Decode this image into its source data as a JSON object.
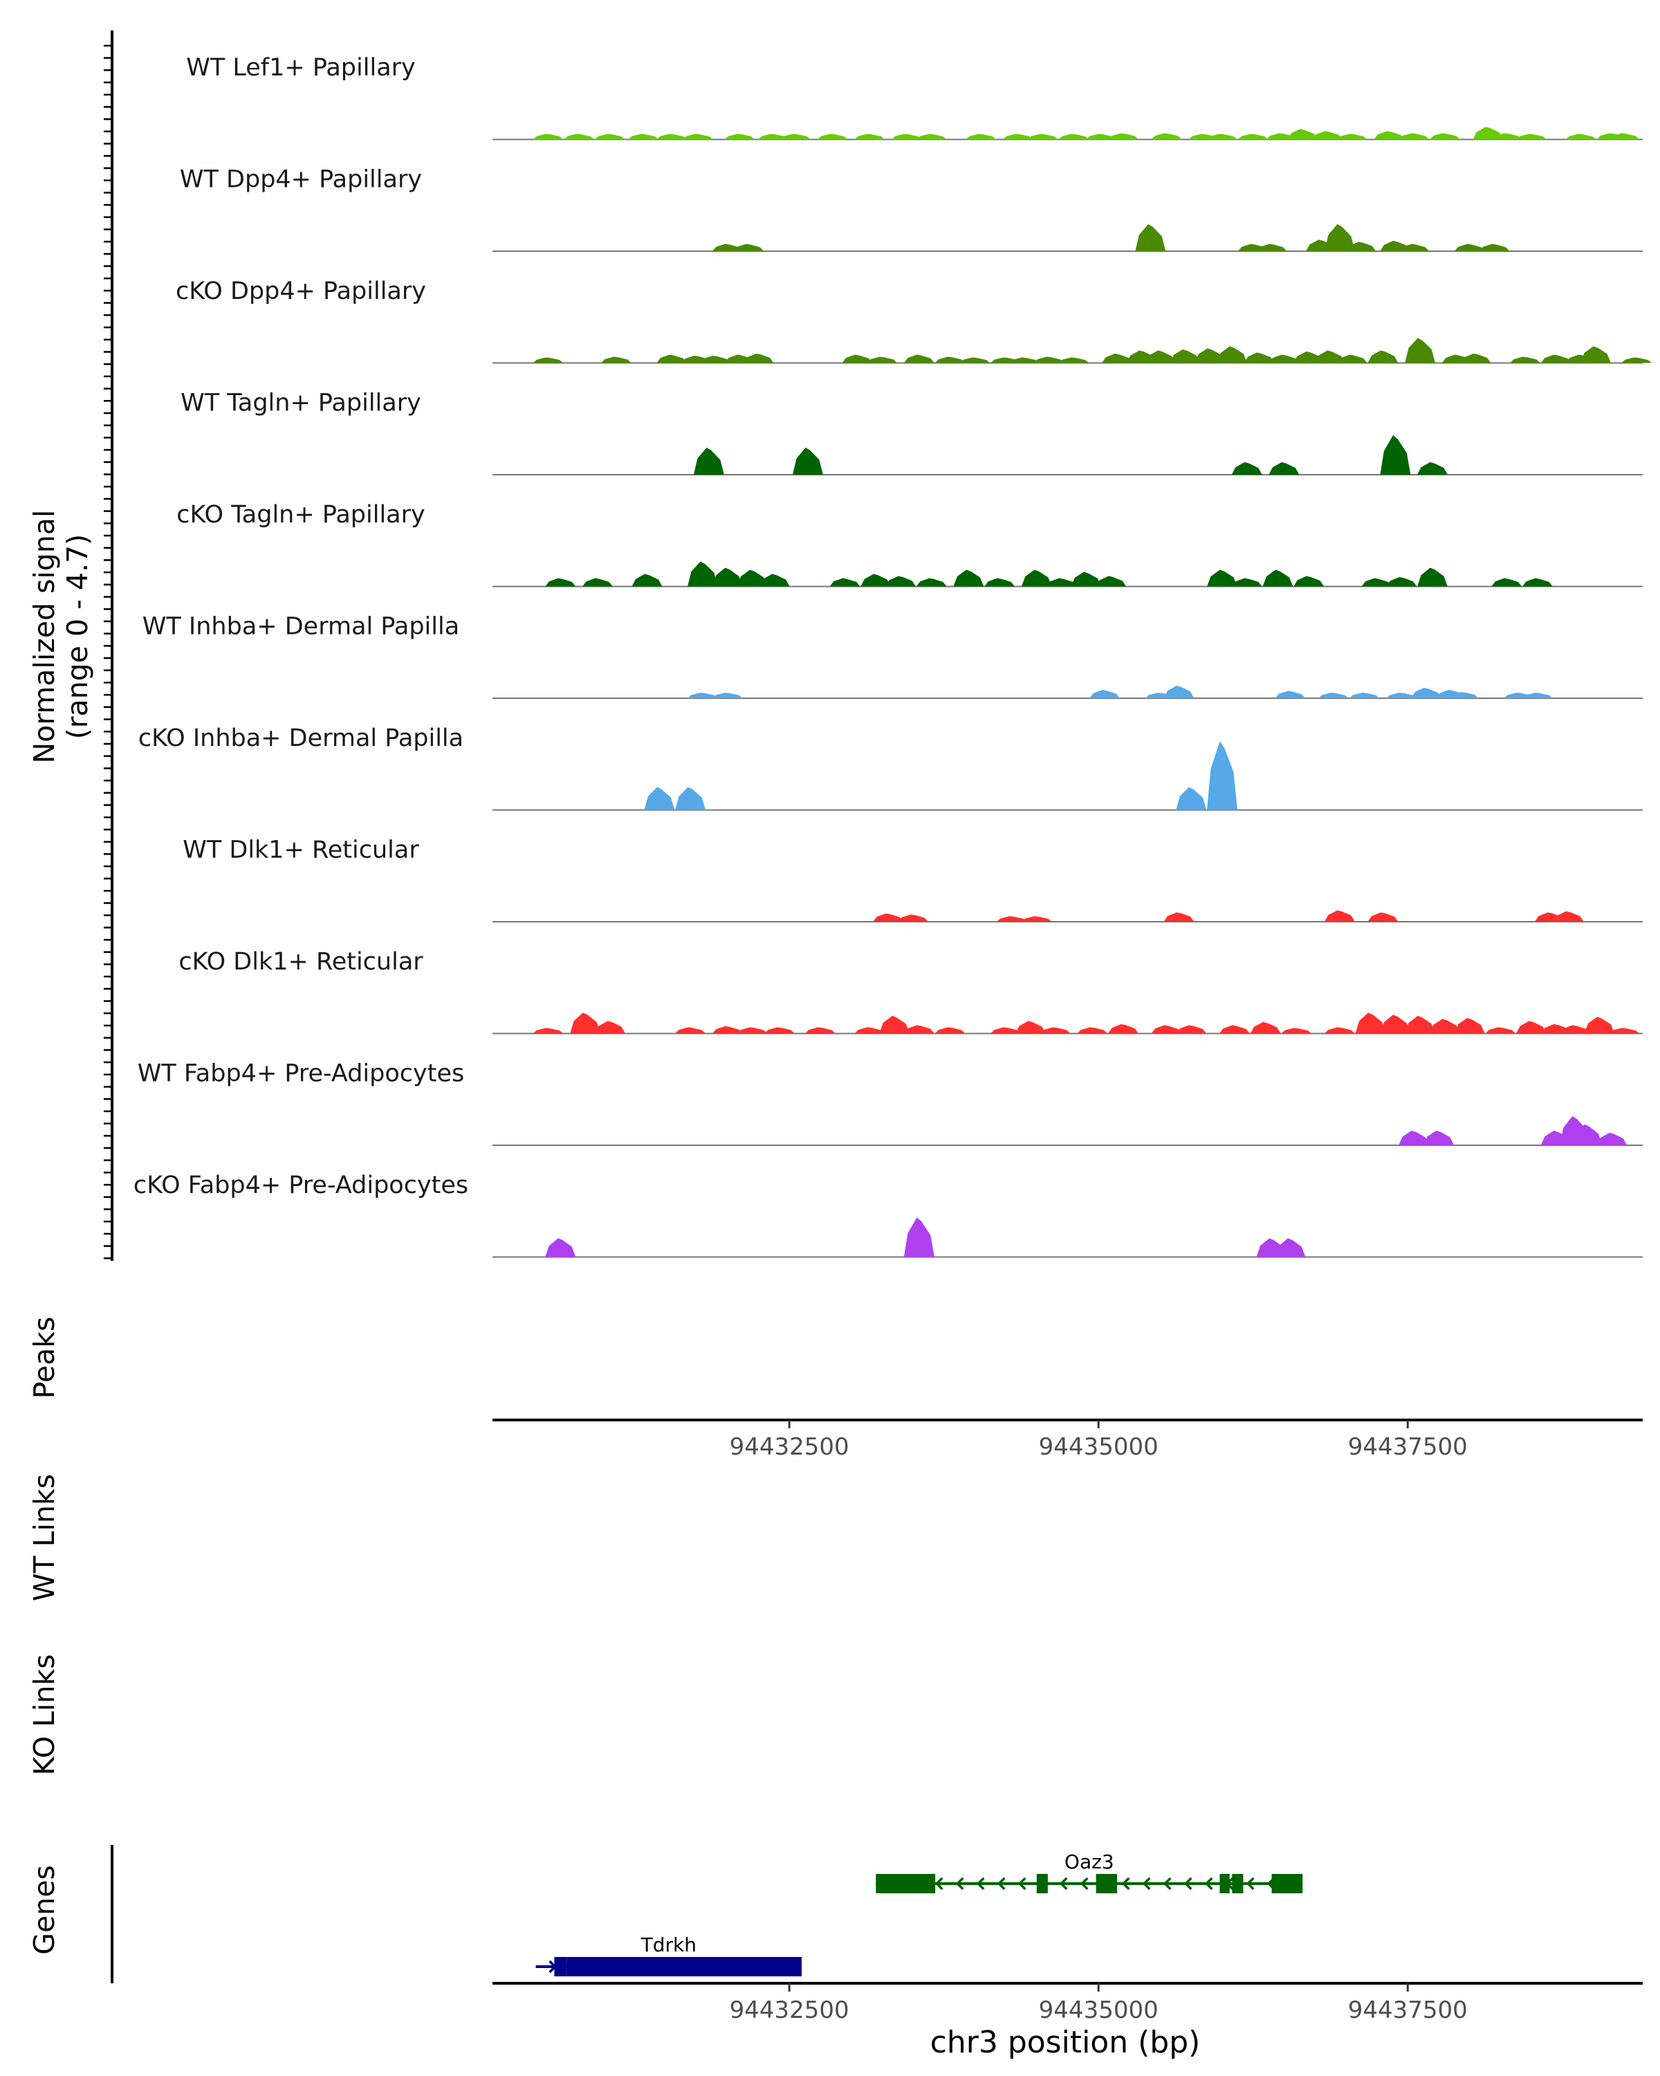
{
  "chart_data": {
    "type": "area",
    "title": "",
    "signal_axis_label": "Normalized signal",
    "signal_range_label": "(range 0 - 4.7)",
    "signal_range": [
      0,
      4.7
    ],
    "x_range": [
      94430100,
      94439400
    ],
    "xlabel": "chr3 position (bp)",
    "x_ticks": [
      94432500,
      94435000,
      94437500
    ],
    "tick_labels": [
      "94432500",
      "94435000",
      "94437500"
    ],
    "track_labels": {
      "peaks": "Peaks",
      "wt_links": "WT Links",
      "ko_links": "KO Links",
      "genes": "Genes"
    },
    "colors": {
      "lef1": "#66cc00",
      "dpp4": "#4a8a00",
      "tagln": "#006400",
      "inhba": "#56a8e8",
      "dlk1": "#ff2f2f",
      "fabp4": "#b040ee"
    },
    "series": [
      {
        "name": "WT Lef1+ Papillary",
        "color": "#66cc00",
        "peaks": [
          [
            94430550,
            0.12
          ],
          [
            94430800,
            0.1
          ],
          [
            94431050,
            0.15
          ],
          [
            94431320,
            0.12
          ],
          [
            94431550,
            0.12
          ],
          [
            94431760,
            0.1
          ],
          [
            94432100,
            0.1
          ],
          [
            94432370,
            0.1
          ],
          [
            94432550,
            0.15
          ],
          [
            94432850,
            0.15
          ],
          [
            94433150,
            0.15
          ],
          [
            94433450,
            0.13
          ],
          [
            94433650,
            0.13
          ],
          [
            94434050,
            0.13
          ],
          [
            94434350,
            0.2
          ],
          [
            94434550,
            0.15
          ],
          [
            94434800,
            0.18
          ],
          [
            94435020,
            0.18
          ],
          [
            94435200,
            0.3
          ],
          [
            94435550,
            0.3
          ],
          [
            94435850,
            0.15
          ],
          [
            94436000,
            0.18
          ],
          [
            94436250,
            0.2
          ],
          [
            94436480,
            0.3
          ],
          [
            94436650,
            0.5
          ],
          [
            94436850,
            0.4
          ],
          [
            94437050,
            0.2
          ],
          [
            94437350,
            0.4
          ],
          [
            94437550,
            0.3
          ],
          [
            94437800,
            0.3
          ],
          [
            94438150,
            0.6
          ],
          [
            94438300,
            0.3
          ],
          [
            94438500,
            0.15
          ],
          [
            94438900,
            0.15
          ],
          [
            94439150,
            0.3
          ],
          [
            94439250,
            0.3
          ]
        ]
      },
      {
        "name": "WT Dpp4+ Papillary",
        "color": "#4a8a00",
        "peaks": [
          [
            94432000,
            0.35
          ],
          [
            94432170,
            0.35
          ],
          [
            94435420,
            1.3
          ],
          [
            94436250,
            0.35
          ],
          [
            94436400,
            0.35
          ],
          [
            94436800,
            0.55
          ],
          [
            94436950,
            1.3
          ],
          [
            94437120,
            0.45
          ],
          [
            94437400,
            0.5
          ],
          [
            94437550,
            0.35
          ],
          [
            94438000,
            0.35
          ],
          [
            94438200,
            0.35
          ]
        ]
      },
      {
        "name": "cKO Dpp4+ Papillary",
        "color": "#4a8a00",
        "peaks": [
          [
            94430550,
            0.25
          ],
          [
            94431100,
            0.3
          ],
          [
            94431550,
            0.4
          ],
          [
            94431750,
            0.35
          ],
          [
            94431900,
            0.35
          ],
          [
            94432100,
            0.4
          ],
          [
            94432250,
            0.45
          ],
          [
            94433050,
            0.4
          ],
          [
            94433250,
            0.3
          ],
          [
            94433550,
            0.4
          ],
          [
            94433800,
            0.3
          ],
          [
            94434000,
            0.25
          ],
          [
            94434250,
            0.25
          ],
          [
            94434400,
            0.25
          ],
          [
            94434600,
            0.3
          ],
          [
            94434800,
            0.25
          ],
          [
            94435150,
            0.45
          ],
          [
            94435350,
            0.6
          ],
          [
            94435500,
            0.6
          ],
          [
            94435700,
            0.65
          ],
          [
            94435900,
            0.7
          ],
          [
            94436080,
            0.8
          ],
          [
            94436300,
            0.5
          ],
          [
            94436500,
            0.4
          ],
          [
            94436700,
            0.55
          ],
          [
            94436870,
            0.6
          ],
          [
            94437050,
            0.4
          ],
          [
            94437300,
            0.6
          ],
          [
            94437600,
            1.2
          ],
          [
            94437900,
            0.4
          ],
          [
            94438050,
            0.45
          ],
          [
            94438450,
            0.3
          ],
          [
            94438700,
            0.4
          ],
          [
            94438900,
            0.4
          ],
          [
            94439020,
            0.8
          ],
          [
            94439350,
            0.15
          ]
        ]
      },
      {
        "name": "WT Tagln+ Papillary",
        "color": "#006400",
        "peaks": [
          [
            94431850,
            1.3
          ],
          [
            94432650,
            1.3
          ],
          [
            94436200,
            0.6
          ],
          [
            94436500,
            0.6
          ],
          [
            94437400,
            1.9
          ],
          [
            94437700,
            0.6
          ]
        ]
      },
      {
        "name": "cKO Tagln+ Papillary",
        "color": "#006400",
        "peaks": [
          [
            94430650,
            0.4
          ],
          [
            94430950,
            0.4
          ],
          [
            94431350,
            0.6
          ],
          [
            94431800,
            1.2
          ],
          [
            94432000,
            0.9
          ],
          [
            94432200,
            0.8
          ],
          [
            94432380,
            0.6
          ],
          [
            94432950,
            0.4
          ],
          [
            94433200,
            0.6
          ],
          [
            94433400,
            0.5
          ],
          [
            94433650,
            0.4
          ],
          [
            94433950,
            0.8
          ],
          [
            94434200,
            0.4
          ],
          [
            94434500,
            0.8
          ],
          [
            94434700,
            0.4
          ],
          [
            94434900,
            0.7
          ],
          [
            94435100,
            0.5
          ],
          [
            94436000,
            0.8
          ],
          [
            94436200,
            0.4
          ],
          [
            94436450,
            0.8
          ],
          [
            94436700,
            0.5
          ],
          [
            94437250,
            0.4
          ],
          [
            94437450,
            0.45
          ],
          [
            94437700,
            0.9
          ],
          [
            94438300,
            0.4
          ],
          [
            94438550,
            0.4
          ]
        ]
      },
      {
        "name": "WT Inhba+ Dermal Papilla",
        "color": "#56a8e8",
        "peaks": [
          [
            94431800,
            0.2
          ],
          [
            94432000,
            0.2
          ],
          [
            94435050,
            0.4
          ],
          [
            94435500,
            0.2
          ],
          [
            94435650,
            0.6
          ],
          [
            94436550,
            0.35
          ],
          [
            94436900,
            0.2
          ],
          [
            94437150,
            0.2
          ],
          [
            94437450,
            0.2
          ],
          [
            94437650,
            0.5
          ],
          [
            94437850,
            0.4
          ],
          [
            94437950,
            0.3
          ],
          [
            94438400,
            0.2
          ],
          [
            94438550,
            0.2
          ]
        ]
      },
      {
        "name": "cKO Inhba+ Dermal Papilla",
        "color": "#56a8e8",
        "peaks": [
          [
            94431450,
            1.1
          ],
          [
            94431700,
            1.1
          ],
          [
            94435750,
            1.1
          ],
          [
            94436000,
            3.3
          ]
        ]
      },
      {
        "name": "WT Dlk1+ Reticular",
        "color": "#ff2f2f",
        "peaks": [
          [
            94433300,
            0.4
          ],
          [
            94433500,
            0.35
          ],
          [
            94434300,
            0.25
          ],
          [
            94434500,
            0.25
          ],
          [
            94435650,
            0.45
          ],
          [
            94436950,
            0.55
          ],
          [
            94437300,
            0.45
          ],
          [
            94438650,
            0.45
          ],
          [
            94438800,
            0.5
          ]
        ]
      },
      {
        "name": "cKO Dlk1+ Reticular",
        "color": "#ff2f2f",
        "peaks": [
          [
            94430550,
            0.2
          ],
          [
            94430850,
            1.0
          ],
          [
            94431050,
            0.6
          ],
          [
            94431700,
            0.3
          ],
          [
            94432000,
            0.35
          ],
          [
            94432200,
            0.3
          ],
          [
            94432420,
            0.3
          ],
          [
            94432750,
            0.3
          ],
          [
            94433150,
            0.3
          ],
          [
            94433350,
            0.85
          ],
          [
            94433550,
            0.4
          ],
          [
            94433800,
            0.3
          ],
          [
            94434250,
            0.3
          ],
          [
            94434450,
            0.6
          ],
          [
            94434650,
            0.3
          ],
          [
            94434950,
            0.3
          ],
          [
            94435200,
            0.45
          ],
          [
            94435550,
            0.4
          ],
          [
            94435750,
            0.4
          ],
          [
            94436100,
            0.4
          ],
          [
            94436350,
            0.55
          ],
          [
            94436600,
            0.2
          ],
          [
            94436950,
            0.3
          ],
          [
            94437200,
            1.0
          ],
          [
            94437400,
            0.9
          ],
          [
            94437600,
            0.85
          ],
          [
            94437800,
            0.7
          ],
          [
            94438000,
            0.75
          ],
          [
            94438250,
            0.3
          ],
          [
            94438500,
            0.6
          ],
          [
            94438700,
            0.45
          ],
          [
            94438850,
            0.4
          ],
          [
            94439050,
            0.8
          ],
          [
            94439250,
            0.2
          ]
        ]
      },
      {
        "name": "WT Fabp4+ Pre-Adipocytes",
        "color": "#b040ee",
        "peaks": [
          [
            94437550,
            0.7
          ],
          [
            94437750,
            0.7
          ],
          [
            94438700,
            0.7
          ],
          [
            94438850,
            1.4
          ],
          [
            94438950,
            1.0
          ],
          [
            94439150,
            0.6
          ]
        ]
      },
      {
        "name": "cKO Fabp4+ Pre-Adipocytes",
        "color": "#b040ee",
        "peaks": [
          [
            94430650,
            0.9
          ],
          [
            94433550,
            1.9
          ],
          [
            94436400,
            0.9
          ],
          [
            94436550,
            0.9
          ]
        ]
      }
    ],
    "genes": [
      {
        "name": "Oaz3",
        "start": 94433200,
        "end": 94436650,
        "strand": "-",
        "color": "#006400",
        "exons": [
          [
            94433200,
            94433680
          ],
          [
            94434500,
            94434590
          ],
          [
            94434980,
            94435150
          ],
          [
            94435980,
            94436060
          ],
          [
            94436080,
            94436170
          ],
          [
            94436400,
            94436650
          ]
        ]
      },
      {
        "name": "Tdrkh",
        "start": 94430450,
        "end": 94432600,
        "strand": "+",
        "color": "#00008b",
        "exons": [
          [
            94430600,
            94430700
          ],
          [
            94430700,
            94432600
          ]
        ]
      }
    ]
  }
}
